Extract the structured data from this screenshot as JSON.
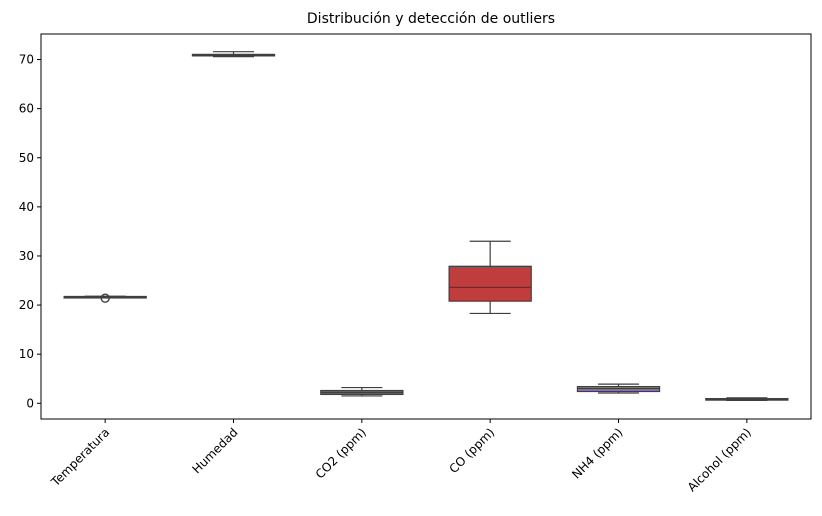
{
  "chart_data": {
    "type": "box",
    "title": "Distribución y detección de outliers",
    "xlabel": "",
    "ylabel": "",
    "ylim": [
      -3.2,
      75.2
    ],
    "yticks": [
      0,
      10,
      20,
      30,
      40,
      50,
      60,
      70
    ],
    "grid": false,
    "categories": [
      "Temperatura",
      "Humedad",
      "CO2 (ppm)",
      "CO (ppm)",
      "NH4 (ppm)",
      "Alcohol (ppm)"
    ],
    "boxes": [
      {
        "category": "Temperatura",
        "whisker_low": 21.6,
        "q1": 21.65,
        "median": 21.7,
        "q3": 21.75,
        "whisker_high": 21.8,
        "outliers": [
          21.4
        ],
        "color": "#3274a1"
      },
      {
        "category": "Humedad",
        "whisker_low": 70.6,
        "q1": 70.75,
        "median": 70.9,
        "q3": 71.05,
        "whisker_high": 71.6,
        "outliers": [],
        "color": "#e1812c"
      },
      {
        "category": "CO2 (ppm)",
        "whisker_low": 1.5,
        "q1": 1.8,
        "median": 2.2,
        "q3": 2.6,
        "whisker_high": 3.2,
        "outliers": [],
        "color": "#3a923a"
      },
      {
        "category": "CO (ppm)",
        "whisker_low": 18.3,
        "q1": 20.8,
        "median": 23.6,
        "q3": 27.9,
        "whisker_high": 33.0,
        "outliers": [],
        "color": "#c03d3e"
      },
      {
        "category": "NH4 (ppm)",
        "whisker_low": 2.1,
        "q1": 2.4,
        "median": 3.0,
        "q3": 3.4,
        "whisker_high": 3.9,
        "outliers": [],
        "color": "#9372b2"
      },
      {
        "category": "Alcohol (ppm)",
        "whisker_low": 0.6,
        "q1": 0.7,
        "median": 0.8,
        "q3": 0.95,
        "whisker_high": 1.1,
        "outliers": [],
        "color": "#845b53"
      }
    ]
  }
}
